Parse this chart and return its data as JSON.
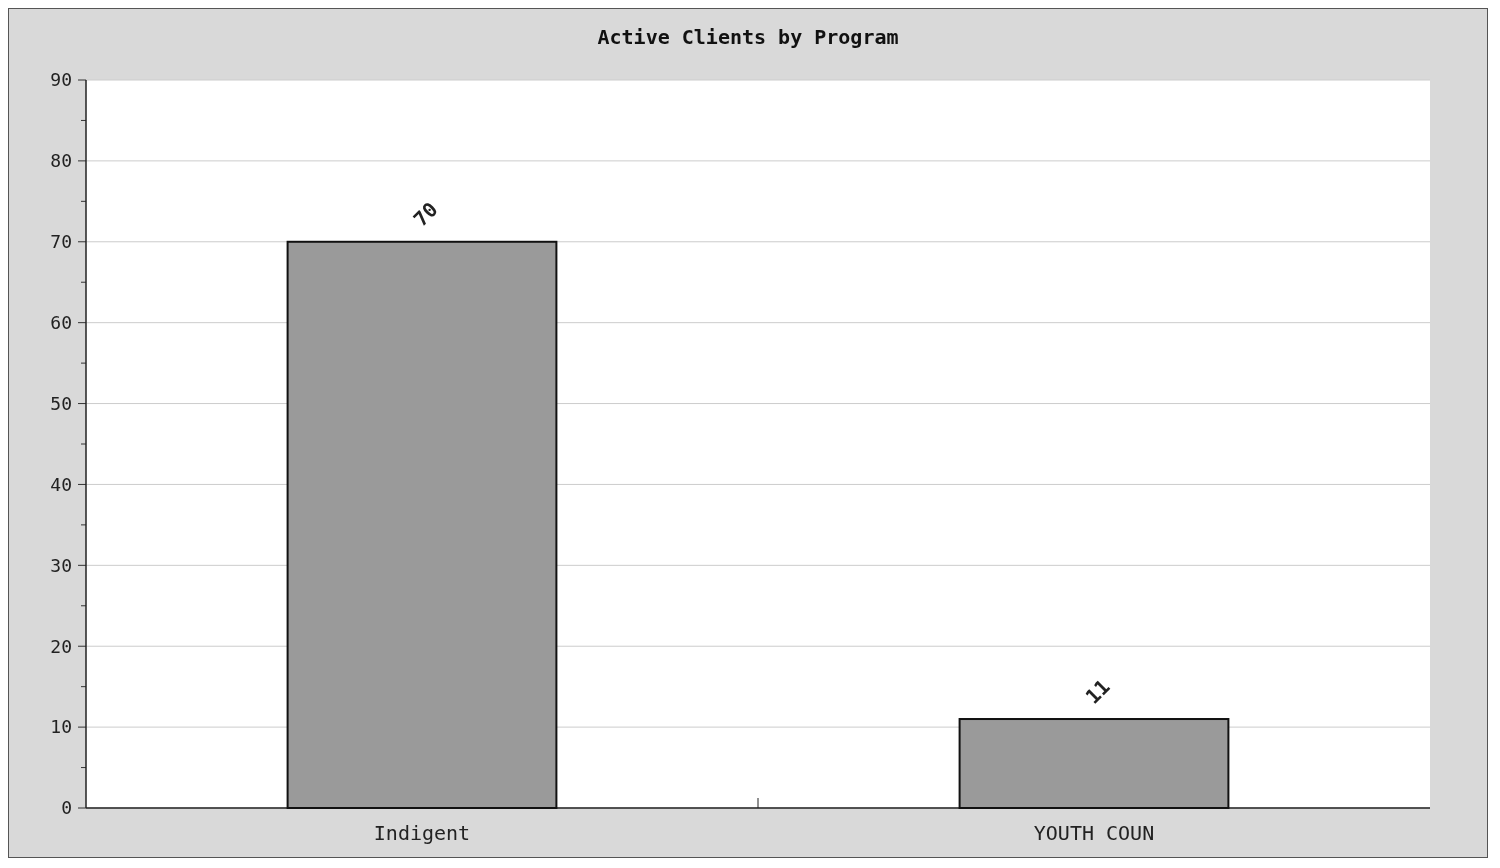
{
  "chart_data": {
    "type": "bar",
    "title": "Active Clients by Program",
    "categories": [
      "Indigent",
      "YOUTH COUN"
    ],
    "values": [
      70,
      11
    ],
    "color": "#9a9a9a",
    "ylim": [
      0,
      90
    ],
    "yticks": [
      0,
      {
        "value": 5,
        "label": null
      },
      10,
      {
        "value": 15,
        "label": null
      },
      20,
      {
        "value": 25,
        "label": null
      },
      30,
      {
        "value": 35,
        "label": null
      },
      40,
      {
        "value": 45,
        "label": null
      },
      50,
      {
        "value": 55,
        "label": null
      },
      60,
      {
        "value": 65,
        "label": null
      },
      70,
      {
        "value": 75,
        "label": null
      },
      80,
      {
        "value": 85,
        "label": null
      },
      90
    ],
    "grid": "y",
    "data_labels": true
  }
}
